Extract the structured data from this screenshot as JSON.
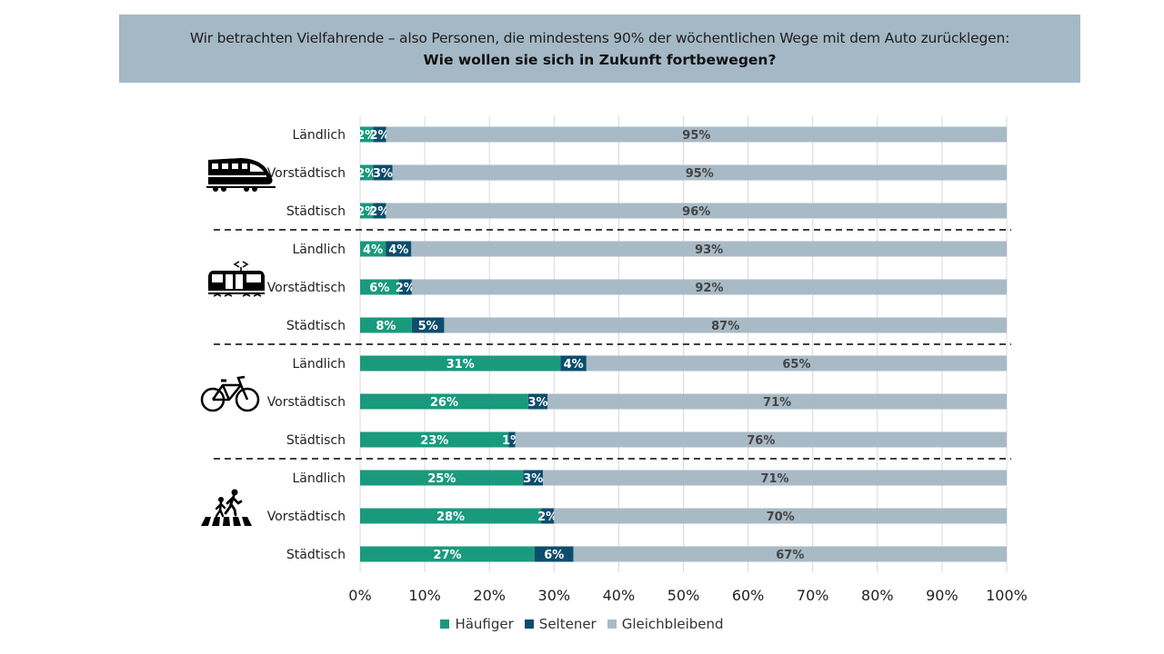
{
  "header": {
    "line1": "Wir betrachten Vielfahrende – also Personen, die mindestens 90% der wöchentlichen Wege mit dem Auto zurücklegen:",
    "line2": "Wie wollen sie sich in Zukunft fortbewegen?"
  },
  "colors": {
    "haeufiger": "#1a9a7d",
    "seltener": "#0c4d6e",
    "gleichbleibend": "#a8bac6",
    "header_bg": "#a4b8c5"
  },
  "groups": [
    {
      "icon": "train-icon"
    },
    {
      "icon": "tram-icon"
    },
    {
      "icon": "bicycle-icon"
    },
    {
      "icon": "pedestrian-crossing-icon"
    }
  ],
  "chart_data": {
    "type": "bar",
    "orientation": "horizontal",
    "stacked": true,
    "categories": [
      "Ländlich",
      "Vorstädtisch",
      "Städtisch",
      "Ländlich",
      "Vorstädtisch",
      "Städtisch",
      "Ländlich",
      "Vorstädtisch",
      "Städtisch",
      "Ländlich",
      "Vorstädtisch",
      "Städtisch"
    ],
    "series": [
      {
        "name": "Häufiger",
        "values": [
          2,
          2,
          2,
          4,
          6,
          8,
          31,
          26,
          23,
          25,
          28,
          27
        ]
      },
      {
        "name": "Seltener",
        "values": [
          2,
          3,
          2,
          4,
          2,
          5,
          4,
          3,
          1,
          3,
          2,
          6
        ]
      },
      {
        "name": "Gleichbleibend",
        "values": [
          95,
          95,
          96,
          93,
          92,
          87,
          65,
          71,
          76,
          71,
          70,
          67
        ]
      }
    ],
    "xlim": [
      0,
      100
    ],
    "xticks": [
      "0%",
      "10%",
      "20%",
      "30%",
      "40%",
      "50%",
      "60%",
      "70%",
      "80%",
      "90%",
      "100%"
    ],
    "grid": true,
    "legend": "bottom-center"
  }
}
